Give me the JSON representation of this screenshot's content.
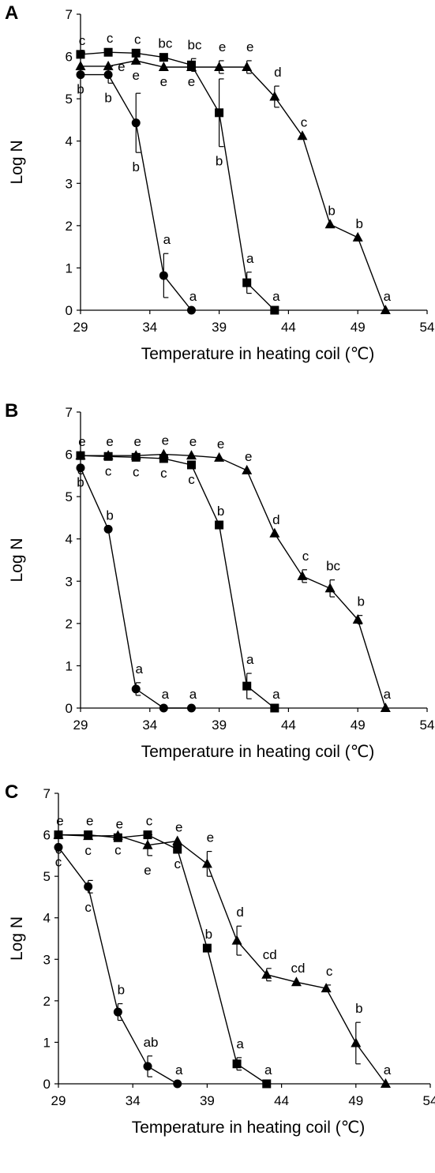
{
  "chart_data": [
    {
      "panel": "A",
      "type": "line",
      "xlabel": "Temperature in heating coil (℃)",
      "ylabel": "Log N",
      "xlim": [
        29,
        54
      ],
      "ylim": [
        0,
        7
      ],
      "xticks": [
        29,
        34,
        39,
        44,
        49,
        54
      ],
      "yticks": [
        0,
        1,
        2,
        3,
        4,
        5,
        6,
        7
      ],
      "legend": "none",
      "series": [
        {
          "marker": "circle",
          "x": [
            29,
            31,
            33,
            35,
            37
          ],
          "y": [
            5.57,
            5.57,
            4.43,
            0.82,
            0
          ],
          "err": [
            0,
            0.2,
            0.7,
            0.52,
            0
          ],
          "letters": [
            "b",
            "b",
            "b",
            "a",
            "a"
          ],
          "letter_pos": [
            "below",
            "below",
            "below",
            "above",
            "above"
          ]
        },
        {
          "marker": "square",
          "x": [
            29,
            31,
            33,
            35,
            37,
            39,
            41,
            43
          ],
          "y": [
            6.05,
            6.1,
            6.08,
            5.98,
            5.8,
            4.67,
            0.65,
            0
          ],
          "err": [
            0,
            0,
            0,
            0,
            0.15,
            0.8,
            0.25,
            0
          ],
          "letters": [
            "c",
            "c",
            "c",
            "bc",
            "bc",
            "b",
            "a",
            "a"
          ],
          "letter_pos": [
            "above",
            "above",
            "above",
            "above",
            "above",
            "below",
            "above",
            "above"
          ]
        },
        {
          "marker": "triangle",
          "x": [
            29,
            31,
            33,
            35,
            37,
            39,
            41,
            43,
            45,
            47,
            49,
            51
          ],
          "y": [
            5.77,
            5.77,
            5.9,
            5.75,
            5.75,
            5.75,
            5.75,
            5.05,
            4.12,
            2.03,
            1.72,
            0
          ],
          "err": [
            0,
            0,
            0,
            0,
            0,
            0.15,
            0.15,
            0.25,
            0,
            0,
            0,
            0
          ],
          "letters": [
            "e",
            "e",
            "e",
            "e",
            "e",
            "e",
            "e",
            "d",
            "c",
            "b",
            "b",
            "a"
          ],
          "letter_pos": [
            "above",
            "right",
            "below",
            "below",
            "below",
            "above",
            "above",
            "above",
            "above",
            "above",
            "above",
            "above"
          ]
        }
      ]
    },
    {
      "panel": "B",
      "type": "line",
      "xlabel": "Temperature in heating coil (℃)",
      "ylabel": "Log N",
      "xlim": [
        29,
        54
      ],
      "ylim": [
        0,
        7
      ],
      "xticks": [
        29,
        34,
        39,
        44,
        49,
        54
      ],
      "yticks": [
        0,
        1,
        2,
        3,
        4,
        5,
        6,
        7
      ],
      "legend": "none",
      "series": [
        {
          "marker": "circle",
          "x": [
            29,
            31,
            33,
            35,
            37
          ],
          "y": [
            5.68,
            4.23,
            0.45,
            0,
            0
          ],
          "err": [
            0,
            0,
            0.15,
            0,
            0
          ],
          "letters": [
            "b",
            "b",
            "a",
            "a",
            "a"
          ],
          "letter_pos": [
            "below",
            "above",
            "above",
            "above",
            "above"
          ]
        },
        {
          "marker": "square",
          "x": [
            29,
            31,
            33,
            35,
            37,
            39,
            41,
            43
          ],
          "y": [
            5.97,
            5.95,
            5.93,
            5.9,
            5.75,
            4.33,
            0.52,
            0
          ],
          "err": [
            0,
            0,
            0,
            0,
            0,
            0,
            0.3,
            0
          ],
          "letters": [
            "c",
            "c",
            "c",
            "c",
            "c",
            "b",
            "a",
            "a"
          ],
          "letter_pos": [
            "below",
            "below",
            "below",
            "below",
            "below",
            "above",
            "above",
            "above"
          ]
        },
        {
          "marker": "triangle",
          "x": [
            29,
            31,
            33,
            35,
            37,
            39,
            41,
            43,
            45,
            47,
            49,
            51
          ],
          "y": [
            5.97,
            5.97,
            5.97,
            6.0,
            5.97,
            5.92,
            5.62,
            4.13,
            3.12,
            2.83,
            2.09,
            0
          ],
          "err": [
            0,
            0,
            0,
            0,
            0,
            0,
            0,
            0,
            0.15,
            0.2,
            0.1,
            0
          ],
          "letters": [
            "e",
            "e",
            "e",
            "e",
            "e",
            "e",
            "e",
            "d",
            "c",
            "bc",
            "b",
            "a"
          ],
          "letter_pos": [
            "above",
            "above",
            "above",
            "above",
            "above",
            "above",
            "above",
            "above",
            "above",
            "above",
            "above",
            "above"
          ]
        }
      ]
    },
    {
      "panel": "C",
      "type": "line",
      "xlabel": "Temperature in heating coil (℃)",
      "ylabel": "Log N",
      "xlim": [
        29,
        54
      ],
      "ylim": [
        0,
        7
      ],
      "xticks": [
        29,
        34,
        39,
        44,
        49,
        54
      ],
      "yticks": [
        0,
        1,
        2,
        3,
        4,
        5,
        6,
        7
      ],
      "legend": "none",
      "series": [
        {
          "marker": "circle",
          "x": [
            29,
            31,
            33,
            35,
            37
          ],
          "y": [
            5.7,
            4.75,
            1.73,
            0.42,
            0
          ],
          "err": [
            0,
            0.15,
            0.2,
            0.25,
            0
          ],
          "letters": [
            "c",
            "c",
            "b",
            "ab",
            "a"
          ],
          "letter_pos": [
            "below",
            "below",
            "above",
            "above",
            "above"
          ]
        },
        {
          "marker": "square",
          "x": [
            29,
            31,
            33,
            35,
            37,
            39,
            41,
            43
          ],
          "y": [
            6.0,
            6.0,
            5.93,
            6.0,
            5.65,
            3.27,
            0.48,
            0
          ],
          "err": [
            0,
            0,
            0,
            0,
            0,
            0,
            0.15,
            0
          ],
          "letters": [
            "e",
            "e",
            "e",
            "c",
            "c",
            "b",
            "a",
            "a"
          ],
          "letter_pos": [
            "above",
            "above",
            "above",
            "above",
            "below",
            "above",
            "above",
            "above"
          ]
        },
        {
          "marker": "triangle",
          "x": [
            29,
            31,
            33,
            35,
            37,
            39,
            41,
            43,
            45,
            47,
            49,
            51
          ],
          "y": [
            6.0,
            5.97,
            5.98,
            5.75,
            5.85,
            5.3,
            3.45,
            2.63,
            2.45,
            2.3,
            0.98,
            0
          ],
          "err": [
            0,
            0,
            0,
            0.25,
            0,
            0.3,
            0.35,
            0.15,
            0,
            0.08,
            0.5,
            0
          ],
          "letters": [
            "c",
            "c",
            "c",
            "e",
            "e",
            "e",
            "d",
            "cd",
            "cd",
            "c",
            "b",
            "a"
          ],
          "letter_pos": [
            "below",
            "below",
            "below",
            "below",
            "above",
            "above",
            "above",
            "above",
            "above",
            "above",
            "above",
            "above"
          ]
        }
      ]
    }
  ]
}
